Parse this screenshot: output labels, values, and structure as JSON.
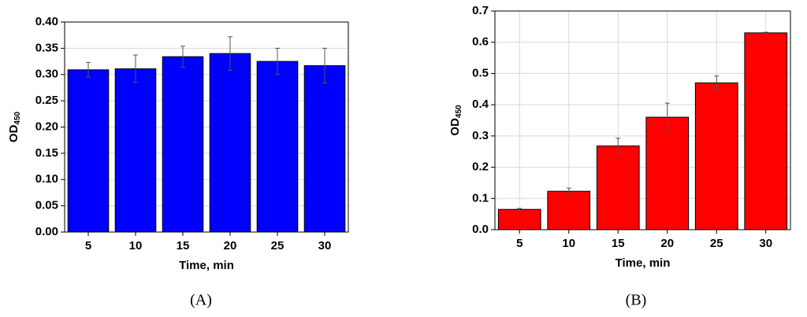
{
  "chart_data": [
    {
      "type": "bar",
      "panel": "(A)",
      "xlabel": "Time, min",
      "ylabel": {
        "text": "OD",
        "subscript": "450"
      },
      "categories": [
        "5",
        "10",
        "15",
        "20",
        "25",
        "30"
      ],
      "values": [
        0.309,
        0.311,
        0.334,
        0.34,
        0.325,
        0.317
      ],
      "errors": [
        0.014,
        0.026,
        0.02,
        0.032,
        0.025,
        0.033
      ],
      "color": "#0000ff",
      "ylim": [
        0,
        0.4
      ],
      "yticks": [
        {
          "value": 0,
          "label": "0.00"
        },
        {
          "value": 0.05,
          "label": "0.05"
        },
        {
          "value": 0.1,
          "label": "0.10"
        },
        {
          "value": 0.15,
          "label": "0.15"
        },
        {
          "value": 0.2,
          "label": "0.20"
        },
        {
          "value": 0.25,
          "label": "0.25"
        },
        {
          "value": 0.3,
          "label": "0.30"
        },
        {
          "value": 0.35,
          "label": "0.35"
        },
        {
          "value": 0.4,
          "label": "0.40"
        }
      ],
      "grid": "y"
    },
    {
      "type": "bar",
      "panel": "(B)",
      "xlabel": "Time, min",
      "ylabel": {
        "text": "OD",
        "subscript": "450"
      },
      "categories": [
        "5",
        "10",
        "15",
        "20",
        "25",
        "30"
      ],
      "values": [
        0.065,
        0.123,
        0.268,
        0.36,
        0.47,
        0.63
      ],
      "errors": [
        0.003,
        0.01,
        0.025,
        0.045,
        0.022,
        0.002
      ],
      "color": "#ff0000",
      "ylim": [
        0,
        0.7
      ],
      "yticks": [
        {
          "value": 0,
          "label": "0.0"
        },
        {
          "value": 0.1,
          "label": "0.1"
        },
        {
          "value": 0.2,
          "label": "0.2"
        },
        {
          "value": 0.3,
          "label": "0.3"
        },
        {
          "value": 0.4,
          "label": "0.4"
        },
        {
          "value": 0.5,
          "label": "0.5"
        },
        {
          "value": 0.6,
          "label": "0.6"
        },
        {
          "value": 0.7,
          "label": "0.7"
        }
      ],
      "grid": "xy"
    }
  ]
}
